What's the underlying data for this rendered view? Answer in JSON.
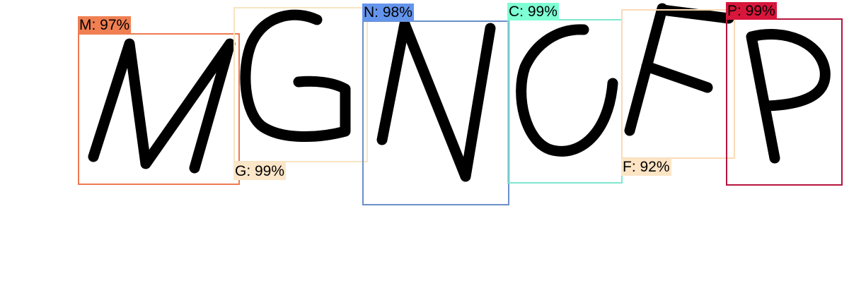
{
  "detections": [
    {
      "id": "m",
      "label": "M: 97%",
      "color": "#ee7a4f",
      "tag_bg": "#f07f52"
    },
    {
      "id": "g",
      "label": "G: 99%",
      "color": "#f8e4c2",
      "tag_bg": "#fbe6c8"
    },
    {
      "id": "n",
      "label": "N: 98%",
      "color": "#6b8fc9",
      "tag_bg": "#6495ed"
    },
    {
      "id": "c",
      "label": "C: 99%",
      "color": "#7fe8cf",
      "tag_bg": "#7fffd4"
    },
    {
      "id": "f",
      "label": "F: 92%",
      "color": "#f9dbb8",
      "tag_bg": "#fce4c4"
    },
    {
      "id": "p",
      "label": "P: 99%",
      "color": "#b5163e",
      "tag_bg": "#d8163c"
    }
  ]
}
